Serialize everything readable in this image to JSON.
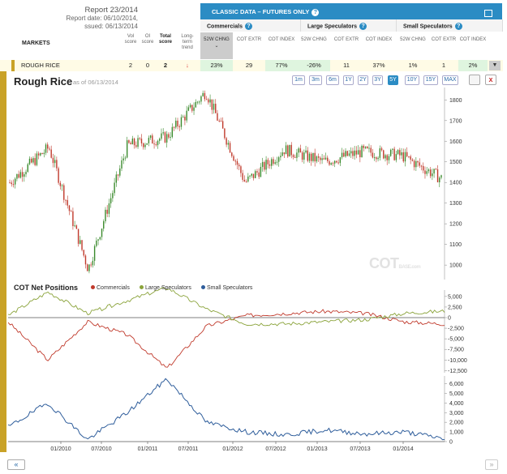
{
  "report": {
    "title": "Report 23/2014",
    "date": "Report date: 06/10/2014,",
    "issued": "ssued: 06/13/2014"
  },
  "table_head": {
    "markets": "MARKETS",
    "vol": "Vol score",
    "oi": "OI score",
    "total": "Total score",
    "trend": "Long- term trend"
  },
  "classic": {
    "title": "CLASSIC DATA – FUTURES ONLY",
    "q": "?"
  },
  "groups": [
    {
      "label": "Commercials"
    },
    {
      "label": "Large Speculators"
    },
    {
      "label": "Small Speculators"
    }
  ],
  "subheads": [
    "52W CHNG",
    "COT EXTR",
    "COT INDEX",
    "52W CHNG",
    "COT EXTR",
    "COT INDEX",
    "52W CHNG",
    "COT EXTR",
    "COT INDEX"
  ],
  "row": {
    "market": "ROUGH RICE",
    "vol": "2",
    "oi": "0",
    "total": "2",
    "trend_arrow": "↓",
    "values": [
      "23%",
      "29",
      "77%",
      "-26%",
      "11",
      "37%",
      "1%",
      "1",
      "2%"
    ]
  },
  "chart": {
    "title": "Rough Rice",
    "asof": "as of 06/13/2014",
    "ranges": [
      "1m",
      "3m",
      "6m",
      "1Y",
      "2Y",
      "3Y",
      "5Y",
      "10Y",
      "15Y",
      "MAX"
    ],
    "active_range": "5Y",
    "close": "x"
  },
  "watermark": {
    "main": "COT",
    "sub": "BASE.com"
  },
  "cot": {
    "title": "COT Net Positions",
    "legend": [
      {
        "name": "Commercials",
        "color": "#c0392b"
      },
      {
        "name": "Large Speculators",
        "color": "#8aa33a"
      },
      {
        "name": "Small Speculators",
        "color": "#2e5d9b"
      }
    ]
  },
  "nav": {
    "prev": "«",
    "next": "»"
  },
  "chart_data": [
    {
      "type": "line",
      "title": "Rough Rice",
      "y_ticks": [
        "1800",
        "1700",
        "1600",
        "1500",
        "1400",
        "1300",
        "1200",
        "1100",
        "1000"
      ],
      "x": [
        "2009-06",
        "2009-12",
        "2010-06",
        "2010-12",
        "2011-06",
        "2011-09",
        "2011-12",
        "2012-06",
        "2012-12",
        "2013-06",
        "2013-12",
        "2014-06"
      ],
      "values": [
        1400,
        1570,
        980,
        1580,
        1620,
        1840,
        1400,
        1560,
        1500,
        1550,
        1530,
        1420
      ]
    },
    {
      "type": "line",
      "title": "COT Net Positions",
      "y_ticks": [
        "5,000",
        "2,500",
        "0",
        "-2,500",
        "-5,000",
        "-7,500",
        "-10,000",
        "-12,500"
      ],
      "x": [
        "2009-06",
        "2010-01",
        "2010-06",
        "2011-01",
        "2011-03",
        "2011-07",
        "2012-01",
        "2012-06",
        "2013-01",
        "2013-06",
        "2014-01",
        "2014-06"
      ],
      "series": [
        {
          "name": "Commercials",
          "values": [
            -1000,
            -10000,
            -1000,
            -4000,
            -12000,
            -2000,
            500,
            1000,
            1500,
            1000,
            -1000,
            -1500
          ]
        },
        {
          "name": "Large Speculators",
          "values": [
            500,
            6000,
            1000,
            4000,
            7000,
            2000,
            -1500,
            -1500,
            -1000,
            -500,
            1000,
            1500
          ]
        }
      ]
    },
    {
      "type": "line",
      "title": "Small Speculators",
      "y_ticks": [
        "6,000",
        "5,000",
        "4,000",
        "3,000",
        "2,000",
        "1,000",
        "0"
      ],
      "x_labels": [
        "01/2010",
        "07/2010",
        "01/2011",
        "07/2011",
        "01/2012",
        "07/2012",
        "01/2013",
        "07/2013",
        "01/2014"
      ],
      "series": [
        {
          "name": "Small Speculators",
          "values": [
            1500,
            4000,
            200,
            3000,
            6500,
            2000,
            1000,
            700,
            1200,
            800,
            1000,
            300
          ]
        }
      ]
    }
  ]
}
